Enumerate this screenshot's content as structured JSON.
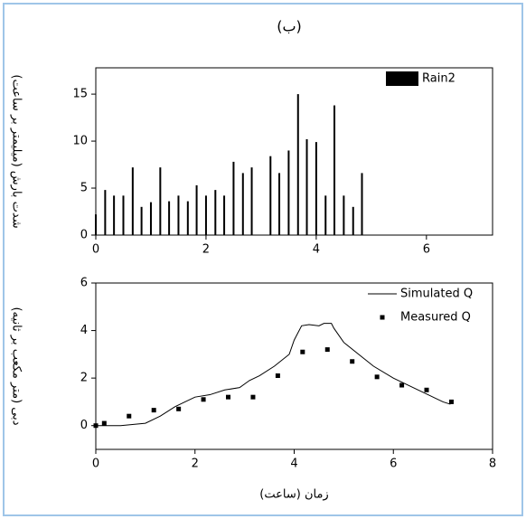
{
  "title": "(ب)",
  "chart_data": [
    {
      "type": "bar",
      "ylabel": "شدت بارش (میلیمتر بر ساعت)",
      "x": [
        0,
        0.17,
        0.33,
        0.5,
        0.67,
        0.83,
        1.0,
        1.17,
        1.33,
        1.5,
        1.67,
        1.83,
        2.0,
        2.17,
        2.33,
        2.5,
        2.67,
        2.83,
        3.17,
        3.33,
        3.5,
        3.67,
        3.83,
        4.0,
        4.17,
        4.33,
        4.5,
        4.67,
        4.83
      ],
      "series": [
        {
          "name": "Rain2",
          "color": "#000000",
          "values": [
            2.2,
            4.8,
            4.2,
            4.2,
            7.2,
            3.0,
            3.5,
            7.2,
            3.6,
            4.2,
            3.6,
            5.3,
            4.2,
            4.8,
            4.2,
            7.8,
            6.6,
            7.2,
            8.4,
            6.6,
            9.0,
            15.0,
            10.2,
            9.9,
            4.2,
            13.8,
            4.2,
            3.0,
            6.6
          ]
        }
      ],
      "xlim": [
        0,
        7.2
      ],
      "ylim": [
        0,
        17.8
      ],
      "xticks": [
        0,
        2,
        4,
        6
      ],
      "yticks": [
        0,
        5,
        10,
        15
      ],
      "legend": "top-right"
    },
    {
      "type": "line",
      "ylabel": "دبی (متر مکعب بر ثانیه)",
      "xlabel": "زمان (ساعت)",
      "series": [
        {
          "name": "Simulated Q",
          "type": "line",
          "color": "#000000",
          "x": [
            0,
            0.5,
            1,
            1.3,
            1.6,
            2,
            2.3,
            2.6,
            2.9,
            3.1,
            3.3,
            3.6,
            3.9,
            4.0,
            4.15,
            4.3,
            4.5,
            4.6,
            4.75,
            4.8,
            5.0,
            5.3,
            5.6,
            6.0,
            6.5,
            7.0,
            7.15
          ],
          "values": [
            0,
            0,
            0.1,
            0.4,
            0.8,
            1.2,
            1.3,
            1.5,
            1.6,
            1.9,
            2.1,
            2.5,
            3.0,
            3.6,
            4.2,
            4.25,
            4.2,
            4.3,
            4.3,
            4.1,
            3.5,
            3.0,
            2.5,
            2.0,
            1.5,
            1.0,
            0.9
          ]
        },
        {
          "name": "Measured Q",
          "type": "scatter",
          "color": "#000000",
          "x": [
            0,
            0.17,
            0.67,
            1.17,
            1.67,
            2.17,
            2.67,
            3.17,
            3.67,
            4.17,
            4.67,
            5.17,
            5.67,
            6.17,
            6.67,
            7.17
          ],
          "values": [
            0,
            0.1,
            0.4,
            0.65,
            0.7,
            1.1,
            1.2,
            1.2,
            2.1,
            3.1,
            3.2,
            2.7,
            2.05,
            1.7,
            1.5,
            1.0
          ]
        }
      ],
      "xlim": [
        0,
        8
      ],
      "ylim": [
        -1,
        6
      ],
      "xticks": [
        0,
        2,
        4,
        6,
        8
      ],
      "yticks": [
        0,
        2,
        4,
        6
      ],
      "legend": "top-right"
    }
  ]
}
